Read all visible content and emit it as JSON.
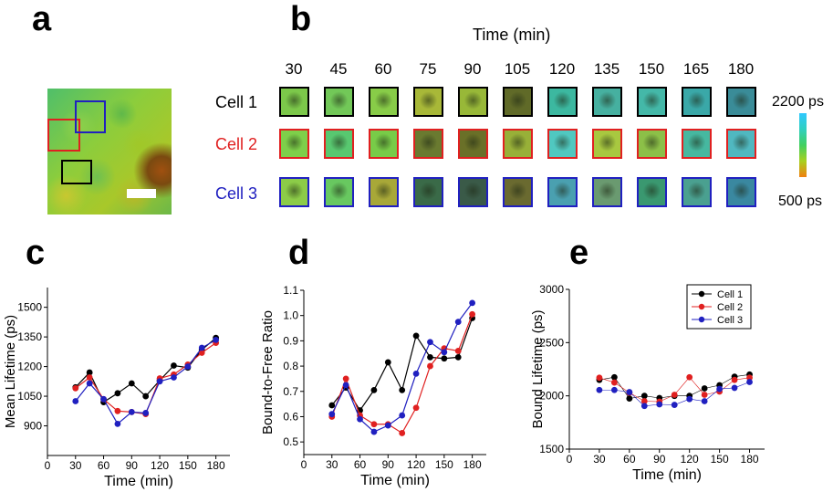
{
  "panel_labels": {
    "a": "a",
    "b": "b",
    "c": "c",
    "d": "d",
    "e": "e"
  },
  "panel_b": {
    "title": "Time (min)",
    "times": [
      "30",
      "45",
      "60",
      "75",
      "90",
      "105",
      "120",
      "135",
      "150",
      "165",
      "180"
    ],
    "cells": [
      {
        "label": "Cell 1",
        "color": "#000000"
      },
      {
        "label": "Cell 2",
        "color": "#e02020"
      },
      {
        "label": "Cell 3",
        "color": "#2020c0"
      }
    ],
    "colorbar": {
      "max_label": "2200 ps",
      "min_label": "500 ps"
    }
  },
  "chart_data": [
    {
      "type": "line",
      "panel": "c",
      "xlabel": "Time (min)",
      "ylabel": "Mean Lifetime (ps)",
      "xlim": [
        0,
        195
      ],
      "ylim": [
        750,
        1600
      ],
      "xticks": [
        0,
        30,
        60,
        90,
        120,
        150,
        180
      ],
      "yticks": [
        900,
        1050,
        1200,
        1350,
        1500
      ],
      "x": [
        30,
        45,
        60,
        75,
        90,
        105,
        120,
        135,
        150,
        165,
        180
      ],
      "series": [
        {
          "name": "Cell 1",
          "color": "#000000",
          "values": [
            1095,
            1170,
            1020,
            1065,
            1115,
            1050,
            1130,
            1205,
            1195,
            1285,
            1345
          ]
        },
        {
          "name": "Cell 2",
          "color": "#e02020",
          "values": [
            1090,
            1145,
            1035,
            975,
            970,
            960,
            1140,
            1160,
            1210,
            1270,
            1320
          ]
        },
        {
          "name": "Cell 3",
          "color": "#2020c0",
          "values": [
            1025,
            1115,
            1035,
            910,
            970,
            965,
            1125,
            1145,
            1200,
            1295,
            1335
          ]
        }
      ]
    },
    {
      "type": "line",
      "panel": "d",
      "xlabel": "Time (min)",
      "ylabel": "Bound-to-Free Ratio",
      "xlim": [
        0,
        195
      ],
      "ylim": [
        0.45,
        1.1
      ],
      "xticks": [
        0,
        30,
        60,
        90,
        120,
        150,
        180
      ],
      "yticks": [
        0.5,
        0.6,
        0.7,
        0.8,
        0.9,
        1.0,
        1.1
      ],
      "ytick_labels": [
        "0.5",
        "0.6",
        "0.7",
        "0.8",
        "0.9",
        "1.0",
        "1.1"
      ],
      "x": [
        30,
        45,
        60,
        75,
        90,
        105,
        120,
        135,
        150,
        165,
        180
      ],
      "series": [
        {
          "name": "Cell 1",
          "color": "#000000",
          "values": [
            0.645,
            0.715,
            0.625,
            0.705,
            0.815,
            0.705,
            0.92,
            0.835,
            0.83,
            0.835,
            0.99
          ]
        },
        {
          "name": "Cell 2",
          "color": "#e02020",
          "values": [
            0.6,
            0.75,
            0.605,
            0.57,
            0.57,
            0.535,
            0.635,
            0.8,
            0.87,
            0.86,
            1.005
          ]
        },
        {
          "name": "Cell 3",
          "color": "#2020c0",
          "values": [
            0.61,
            0.725,
            0.59,
            0.54,
            0.565,
            0.605,
            0.77,
            0.895,
            0.855,
            0.975,
            1.05
          ]
        }
      ]
    },
    {
      "type": "scatter",
      "panel": "e",
      "xlabel": "Time (min)",
      "ylabel": "Bound Lifetime (ps)",
      "xlim": [
        0,
        195
      ],
      "ylim": [
        1500,
        3000
      ],
      "xticks": [
        0,
        30,
        60,
        90,
        120,
        150,
        180
      ],
      "yticks": [
        1500,
        2000,
        2500,
        3000
      ],
      "legend": "top-right",
      "x": [
        30,
        45,
        60,
        75,
        90,
        105,
        120,
        135,
        150,
        165,
        180
      ],
      "series": [
        {
          "name": "Cell 1",
          "color": "#000000",
          "values": [
            2150,
            2175,
            1975,
            2000,
            1980,
            2000,
            2000,
            2070,
            2100,
            2180,
            2200
          ]
        },
        {
          "name": "Cell 2",
          "color": "#e02020",
          "values": [
            2170,
            2125,
            2030,
            1950,
            1945,
            2010,
            2175,
            2010,
            2040,
            2150,
            2170
          ]
        },
        {
          "name": "Cell 3",
          "color": "#2020c0",
          "values": [
            2055,
            2055,
            2035,
            1905,
            1920,
            1915,
            1970,
            1950,
            2065,
            2075,
            2130
          ]
        }
      ]
    }
  ]
}
